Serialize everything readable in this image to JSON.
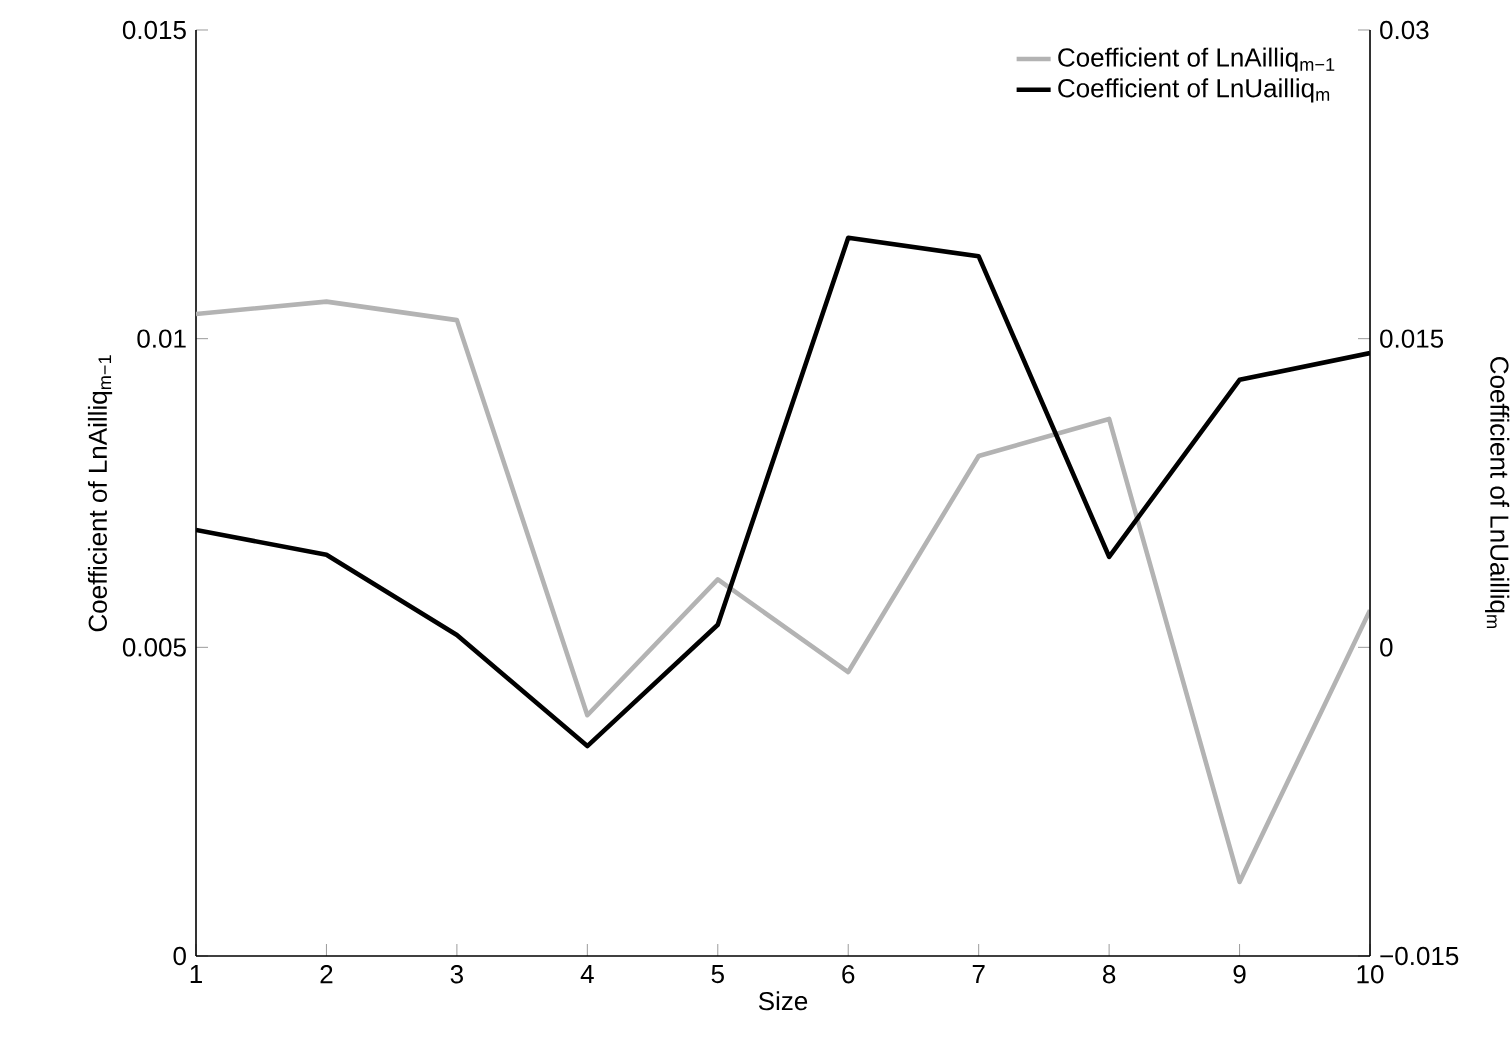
{
  "chart_data": {
    "type": "line",
    "xlabel": "Size",
    "ylabel": "Coefficient of LnAilliq$_{m−1}$",
    "y2label": "Coefficient of LnUailliq$_{m}$",
    "x": [
      1,
      2,
      3,
      4,
      5,
      6,
      7,
      8,
      9,
      10
    ],
    "series": [
      {
        "name": "Coefficient of LnAilliq$_{m−1}$",
        "color": "#b3b3b3",
        "values": [
          0.0104,
          0.0106,
          0.0103,
          0.0039,
          0.0061,
          0.0046,
          0.0081,
          0.0087,
          0.0012,
          0.0056
        ]
      },
      {
        "name": "Coefficient of LnUailliq$_{m}$",
        "color": "#000000",
        "axis": "y2",
        "values": [
          0.0057,
          0.0045,
          0.0006,
          -0.0048,
          0.0011,
          0.0199,
          0.019,
          0.0044,
          0.013,
          0.0143
        ]
      }
    ],
    "xlim": [
      1,
      10
    ],
    "xticks": [
      1,
      2,
      3,
      4,
      5,
      6,
      7,
      8,
      9,
      10
    ],
    "ylim": [
      0,
      0.015
    ],
    "yticks": [
      0,
      0.005,
      0.01,
      0.015
    ],
    "y2lim": [
      -0.015,
      0.03
    ],
    "y2ticks": [
      {
        "value": -0.015,
        "label": "−0.015"
      },
      0,
      0.015,
      0.03
    ],
    "legend": "top right",
    "marker": "none",
    "line_style": "solid",
    "grid": false
  }
}
